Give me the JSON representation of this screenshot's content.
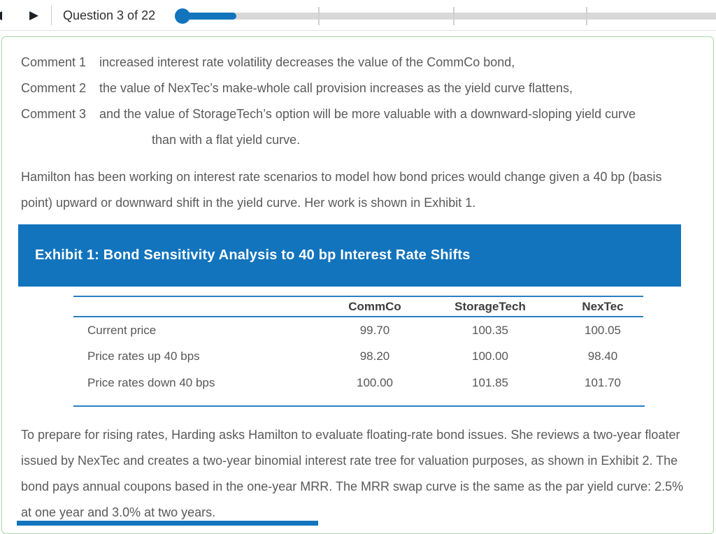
{
  "topbar": {
    "prev_icon": "◀",
    "next_icon": "▶",
    "question_label": "Question 3 of 22",
    "progress_current": 3,
    "progress_total": 22
  },
  "content": {
    "comments": [
      {
        "label": "Comment 1",
        "text": "increased interest rate volatility decreases the value of the CommCo bond,"
      },
      {
        "label": "Comment 2",
        "text": "the value of NexTec’s make-whole call provision increases as the yield curve flattens,"
      },
      {
        "label": "Comment 3",
        "line1": "and the value of StorageTech’s option will be more valuable with a downward-sloping yield curve",
        "line2": "than with a flat yield curve."
      }
    ],
    "paragraph1": "Hamilton has been working on interest rate scenarios to model how bond prices would change given a 40 bp (basis point) upward or downward shift in the yield curve. Her work is shown in Exhibit 1.",
    "exhibit1": {
      "title": "Exhibit 1: Bond Sensitivity Analysis to 40 bp Interest Rate Shifts",
      "table": {
        "columns": [
          "",
          "CommCo",
          "StorageTech",
          "NexTec"
        ],
        "rows": [
          {
            "label": "Current price",
            "values": [
              "99.70",
              "100.35",
              "100.05"
            ]
          },
          {
            "label": "Price rates up 40 bps",
            "values": [
              "98.20",
              "100.00",
              "98.40"
            ]
          },
          {
            "label": "Price rates down 40 bps",
            "values": [
              "100.00",
              "101.85",
              "101.70"
            ]
          }
        ]
      }
    },
    "paragraph2": "To prepare for rising rates, Harding asks Hamilton to evaluate floating-rate bond issues. She reviews a two-year floater issued by NexTec and creates a two-year binomial interest rate tree for valuation purposes, as shown in Exhibit 2. The bond pays annual coupons based in the one-year MRR. The MRR swap curve is the same as the par yield curve: 2.5% at one year and 3.0% at two years."
  },
  "colors": {
    "accent_blue": "#1274bd",
    "table_rule_blue": "#2a80c4",
    "panel_border_green": "#a5d9a5",
    "progress_track_gray": "#d8d8d8",
    "body_text_gray": "#5a5a5a"
  }
}
